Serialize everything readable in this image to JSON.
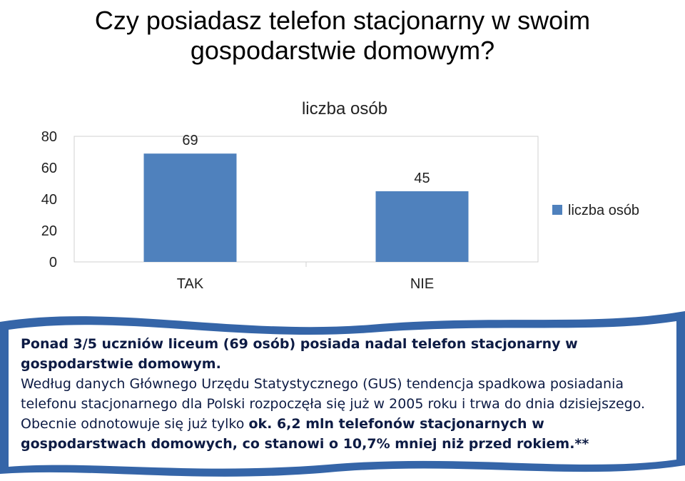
{
  "title": "Czy posiadasz telefon stacjonarny w swoim gospodarstwie domowym?",
  "chart_data": {
    "type": "bar",
    "title": "liczba osób",
    "categories": [
      "TAK",
      "NIE"
    ],
    "series": [
      {
        "name": "liczba osób",
        "values": [
          69,
          45
        ],
        "color": "#4f81bd"
      }
    ],
    "data_labels": [
      "69",
      "45"
    ],
    "ylim": [
      0,
      80
    ],
    "yticks": [
      0,
      20,
      40,
      60,
      80
    ],
    "legend_position": "right",
    "grid": false
  },
  "caption": {
    "bold_line": "Ponad 3/5 uczniów liceum (69 osób) posiada nadal telefon stacjonarny w gospodarstwie domowym.",
    "normal_text": "Według danych Głównego Urzędu Statystycznego (GUS) tendencja spadkowa posiadania telefonu stacjonarnego dla Polski rozpoczęła się już w 2005 roku i trwa do dnia dzisiejszego. Obecnie odnotowuje się już tylko",
    "bold_tail": "ok. 6,2 mln telefonów stacjonarnych w gospodarstwach domowych, co stanowi o 10,7% mniej niż przed rokiem.**",
    "box_color": "#3565a8"
  }
}
